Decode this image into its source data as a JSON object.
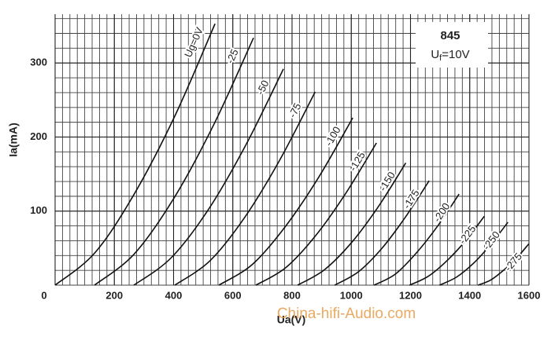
{
  "chart_data": {
    "type": "line",
    "xlabel": "Ua(V)",
    "ylabel": "Ia(mA)",
    "annotation": {
      "tube": "845",
      "filament_symbol": "U",
      "filament_subscript": "f",
      "filament_value": "=10V"
    },
    "watermark": "China-hifi-Audio.com",
    "xlim": [
      0,
      1600
    ],
    "ylim": [
      0,
      366
    ],
    "xticks": [
      0,
      200,
      400,
      600,
      800,
      1000,
      1200,
      1400,
      1600
    ],
    "yticks": [
      100,
      200,
      300
    ],
    "grid": true,
    "series": [
      {
        "name": "Ug=0V",
        "color": "#111111",
        "x": [
          0,
          135,
          270,
          405,
          540
        ],
        "values": [
          0,
          44,
          125,
          229,
          353
        ]
      },
      {
        "name": "-25",
        "color": "#111111",
        "x": [
          133,
          267,
          402,
          536,
          670
        ],
        "values": [
          0,
          42,
          118,
          217,
          334
        ]
      },
      {
        "name": "-50",
        "color": "#111111",
        "x": [
          266,
          392,
          519,
          645,
          771
        ],
        "values": [
          0,
          37,
          103,
          190,
          292
        ]
      },
      {
        "name": "-75",
        "color": "#111111",
        "x": [
          404,
          523,
          641,
          760,
          878
        ],
        "values": [
          0,
          33,
          92,
          170,
          261
        ]
      },
      {
        "name": "-100",
        "color": "#111111",
        "x": [
          553,
          666,
          779,
          892,
          1005
        ],
        "values": [
          0,
          28,
          80,
          147,
          226
        ]
      },
      {
        "name": "-125",
        "color": "#111111",
        "x": [
          678,
          780,
          882,
          983,
          1085
        ],
        "values": [
          0,
          24,
          68,
          125,
          192
        ]
      },
      {
        "name": "-150",
        "color": "#111111",
        "x": [
          819,
          910,
          1002,
          1093,
          1184
        ],
        "values": [
          0,
          21,
          58,
          107,
          165
        ]
      },
      {
        "name": "-175",
        "color": "#111111",
        "x": [
          944,
          1024,
          1104,
          1183,
          1263
        ],
        "values": [
          0,
          18,
          50,
          92,
          141
        ]
      },
      {
        "name": "-200",
        "color": "#111111",
        "x": [
          1077,
          1149,
          1221,
          1292,
          1364
        ],
        "values": [
          0,
          15,
          44,
          80,
          123
        ]
      },
      {
        "name": "-225",
        "color": "#111111",
        "x": [
          1197,
          1260,
          1323,
          1386,
          1449
        ],
        "values": [
          0,
          12,
          33,
          60,
          93
        ]
      },
      {
        "name": "-250",
        "color": "#111111",
        "x": [
          1298,
          1356,
          1414,
          1471,
          1529
        ],
        "values": [
          0,
          11,
          30,
          55,
          85
        ]
      },
      {
        "name": "-275",
        "color": "#111111",
        "x": [
          1428,
          1471,
          1514,
          1557,
          1600
        ],
        "values": [
          0,
          7,
          20,
          36,
          56
        ]
      }
    ]
  }
}
